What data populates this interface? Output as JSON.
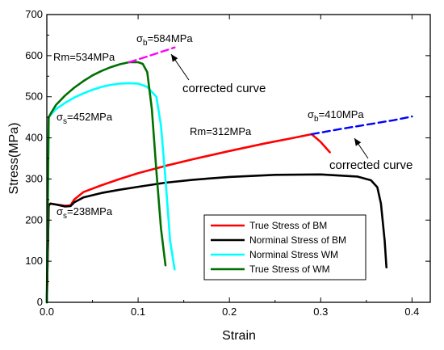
{
  "chart_data": {
    "type": "line",
    "title": "",
    "xlabel": "Strain",
    "ylabel": "Stress(MPa)",
    "xlim": [
      0,
      0.42
    ],
    "ylim": [
      0,
      700
    ],
    "xticks": [
      0.0,
      0.1,
      0.2,
      0.3,
      0.4
    ],
    "xtick_labels": [
      "0.0",
      "0.1",
      "0.2",
      "0.3",
      "0.4"
    ],
    "yticks": [
      0,
      100,
      200,
      300,
      400,
      500,
      600,
      700
    ],
    "ytick_labels": [
      "0",
      "100",
      "200",
      "300",
      "400",
      "500",
      "600",
      "700"
    ],
    "grid": false,
    "legend_position": "lower-right",
    "series": [
      {
        "name": "True Stress of BM",
        "color": "#ff0000",
        "x": [
          0,
          0.002,
          0.004,
          0.01,
          0.02,
          0.026,
          0.03,
          0.04,
          0.06,
          0.08,
          0.1,
          0.13,
          0.16,
          0.2,
          0.24,
          0.27,
          0.29,
          0.3,
          0.31
        ],
        "y": [
          0,
          236,
          240,
          238,
          235,
          236,
          250,
          268,
          285,
          300,
          314,
          332,
          348,
          368,
          387,
          400,
          409,
          390,
          365
        ]
      },
      {
        "name": "Norminal Stress of BM",
        "color": "#000000",
        "x": [
          0,
          0.002,
          0.004,
          0.01,
          0.02,
          0.026,
          0.03,
          0.04,
          0.06,
          0.08,
          0.1,
          0.13,
          0.16,
          0.2,
          0.25,
          0.3,
          0.34,
          0.355,
          0.362,
          0.366,
          0.37,
          0.372
        ],
        "y": [
          0,
          236,
          240,
          238,
          233,
          234,
          243,
          255,
          266,
          274,
          281,
          291,
          298,
          305,
          310,
          311,
          306,
          297,
          280,
          240,
          150,
          85
        ]
      },
      {
        "name": "Norminal Stress WM",
        "color": "#00ffff",
        "x": [
          0,
          0.002,
          0.005,
          0.01,
          0.02,
          0.03,
          0.04,
          0.05,
          0.06,
          0.07,
          0.08,
          0.09,
          0.1,
          0.11,
          0.12,
          0.125,
          0.13,
          0.135,
          0.14
        ],
        "y": [
          0,
          450,
          458,
          470,
          485,
          498,
          508,
          517,
          524,
          529,
          532,
          533,
          532,
          524,
          500,
          430,
          300,
          150,
          80
        ]
      },
      {
        "name": "True Stress of WM",
        "color": "#007000",
        "x": [
          0,
          0.002,
          0.005,
          0.01,
          0.02,
          0.03,
          0.04,
          0.05,
          0.06,
          0.07,
          0.08,
          0.09,
          0.1,
          0.105,
          0.11,
          0.115,
          0.12,
          0.125,
          0.13
        ],
        "y": [
          0,
          450,
          462,
          480,
          503,
          522,
          538,
          552,
          563,
          572,
          579,
          584,
          584,
          580,
          560,
          470,
          320,
          180,
          90
        ]
      },
      {
        "color": "#ff00ff",
        "dashed": true,
        "x": [
          0.09,
          0.11,
          0.14
        ],
        "y": [
          584,
          598,
          620
        ]
      },
      {
        "color": "#0000ff",
        "dashed": true,
        "x": [
          0.29,
          0.32,
          0.35,
          0.38,
          0.4
        ],
        "y": [
          409,
          421,
          432,
          443,
          452
        ]
      }
    ],
    "annotations": {
      "sigma_b_wm": "584MPa",
      "sigma_b_bm": "410MPa",
      "sigma_s_wm": "452MPa",
      "sigma_s_bm": "238MPa",
      "rm_wm": "Rm=534MPa",
      "rm_bm": "Rm=312MPa",
      "corrected_wm": "corrected curve",
      "corrected_bm": "corrected curve",
      "sigma_symbol": "σ",
      "sub_b": "b",
      "sub_s": "s",
      "eq": "="
    }
  }
}
